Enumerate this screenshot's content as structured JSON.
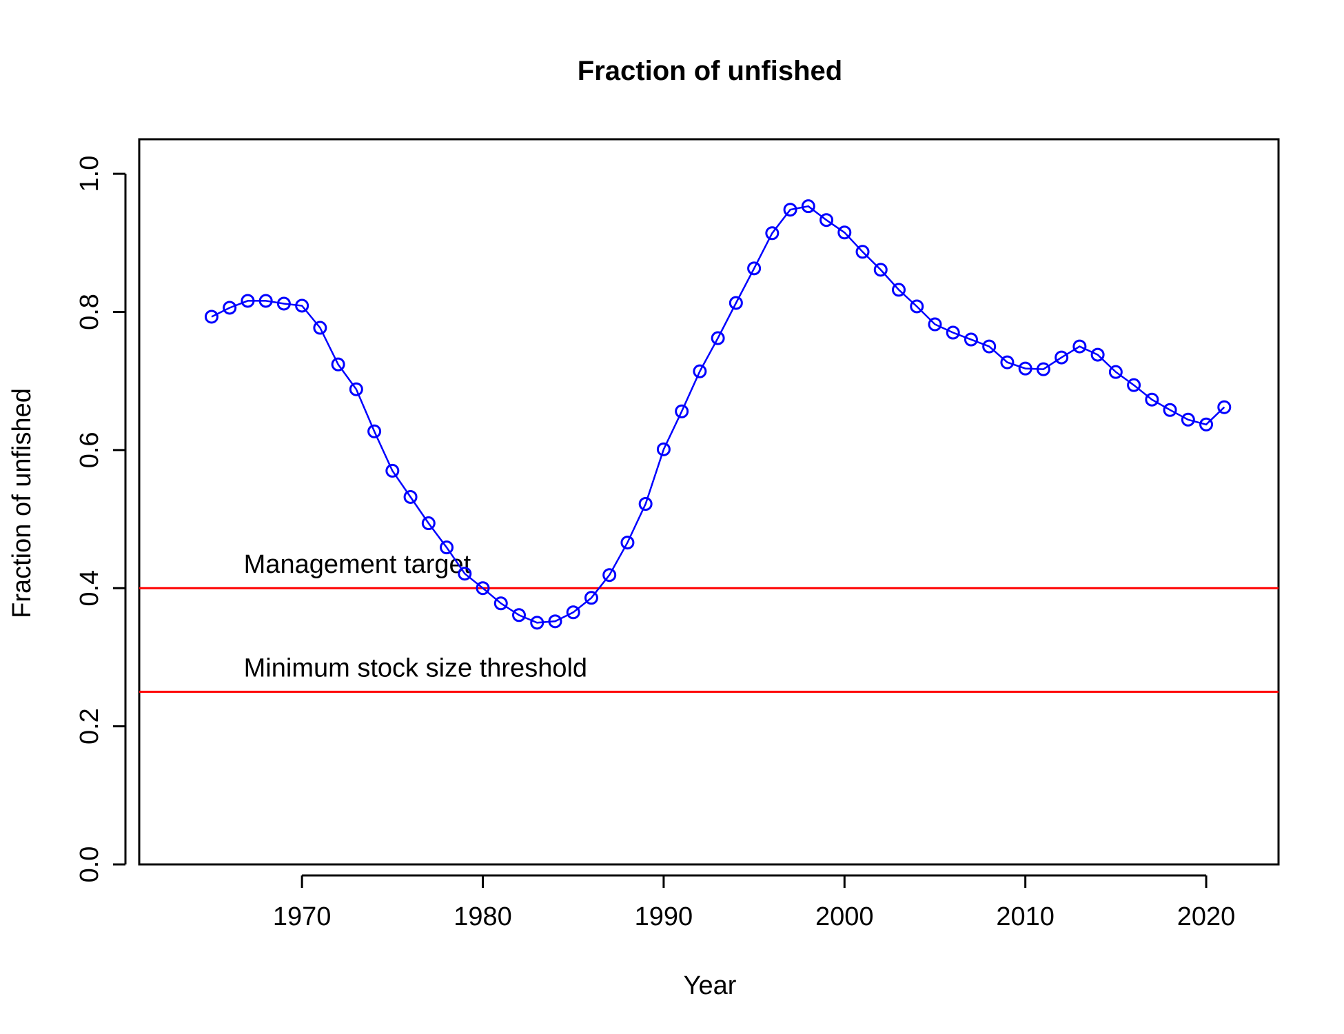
{
  "chart_data": {
    "type": "line",
    "title": "Fraction of unfished",
    "xlabel": "Year",
    "ylabel": "Fraction of unfished",
    "xlim": [
      1961,
      2024
    ],
    "ylim": [
      0.0,
      1.05
    ],
    "x_ticks": [
      "1970",
      "1980",
      "1990",
      "2000",
      "2010",
      "2020"
    ],
    "y_ticks": [
      "0.0",
      "0.2",
      "0.4",
      "0.6",
      "0.8",
      "1.0"
    ],
    "grid": false,
    "legend": "none",
    "series": [
      {
        "color": "#0000ff",
        "marker": "open-circle",
        "x": [
          1965,
          1966,
          1967,
          1968,
          1969,
          1970,
          1971,
          1972,
          1973,
          1974,
          1975,
          1976,
          1977,
          1978,
          1979,
          1980,
          1981,
          1982,
          1983,
          1984,
          1985,
          1986,
          1987,
          1988,
          1989,
          1990,
          1991,
          1992,
          1993,
          1994,
          1995,
          1996,
          1997,
          1998,
          1999,
          2000,
          2001,
          2002,
          2003,
          2004,
          2005,
          2006,
          2007,
          2008,
          2009,
          2010,
          2011,
          2012,
          2013,
          2014,
          2015,
          2016,
          2017,
          2018,
          2019,
          2020,
          2021
        ],
        "values": [
          0.793,
          0.806,
          0.816,
          0.816,
          0.812,
          0.809,
          0.777,
          0.724,
          0.688,
          0.627,
          0.57,
          0.532,
          0.494,
          0.459,
          0.421,
          0.4,
          0.378,
          0.361,
          0.35,
          0.352,
          0.365,
          0.386,
          0.419,
          0.466,
          0.522,
          0.601,
          0.656,
          0.714,
          0.762,
          0.813,
          0.863,
          0.914,
          0.948,
          0.953,
          0.933,
          0.915,
          0.887,
          0.861,
          0.832,
          0.808,
          0.782,
          0.77,
          0.76,
          0.75,
          0.727,
          0.718,
          0.717,
          0.734,
          0.75,
          0.738,
          0.713,
          0.694,
          0.673,
          0.658,
          0.644,
          0.637,
          0.662
        ]
      }
    ],
    "reference_lines": [
      {
        "label": "Management target",
        "y": 0.4,
        "color": "#ff0000"
      },
      {
        "label": "Minimum stock size threshold",
        "y": 0.25,
        "color": "#ff0000"
      }
    ]
  }
}
